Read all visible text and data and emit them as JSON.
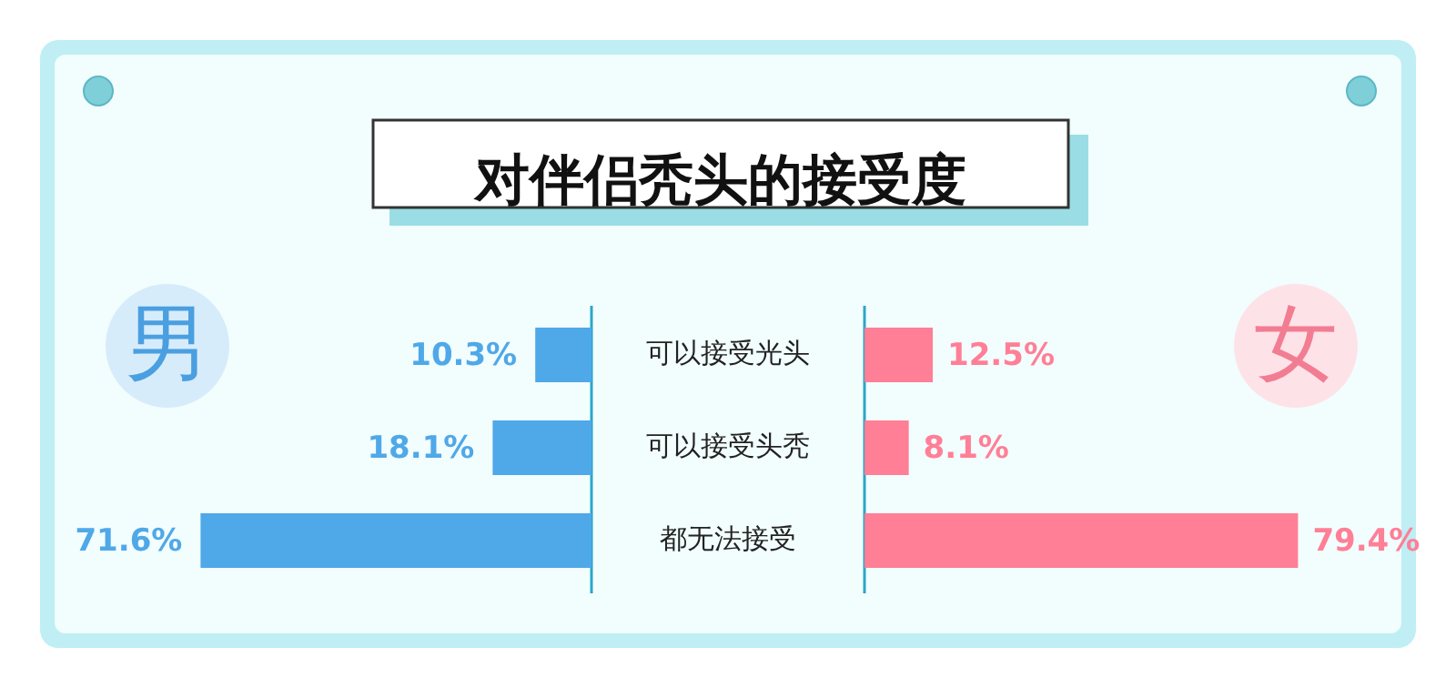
{
  "chart_data": [
    {
      "type": "bar",
      "orientation": "horizontal",
      "title": "对伴侣秃头的接受度",
      "categories": [
        "可以接受光头",
        "可以接受头秃",
        "都无法接受"
      ],
      "series": [
        {
          "name": "男",
          "color": "#4fa8e8",
          "values": [
            10.3,
            18.1,
            71.6
          ],
          "value_labels": [
            "10.3%",
            "18.1%",
            "71.6%"
          ]
        }
      ]
    },
    {
      "type": "bar",
      "orientation": "horizontal",
      "categories": [
        null,
        null,
        null
      ],
      "series": [
        {
          "name": "女",
          "color": "#ff7f96",
          "values": [
            12.5,
            8.1,
            79.4
          ],
          "value_labels": [
            "12.5%",
            "8.1%",
            "79.4%"
          ]
        }
      ]
    }
  ]
}
